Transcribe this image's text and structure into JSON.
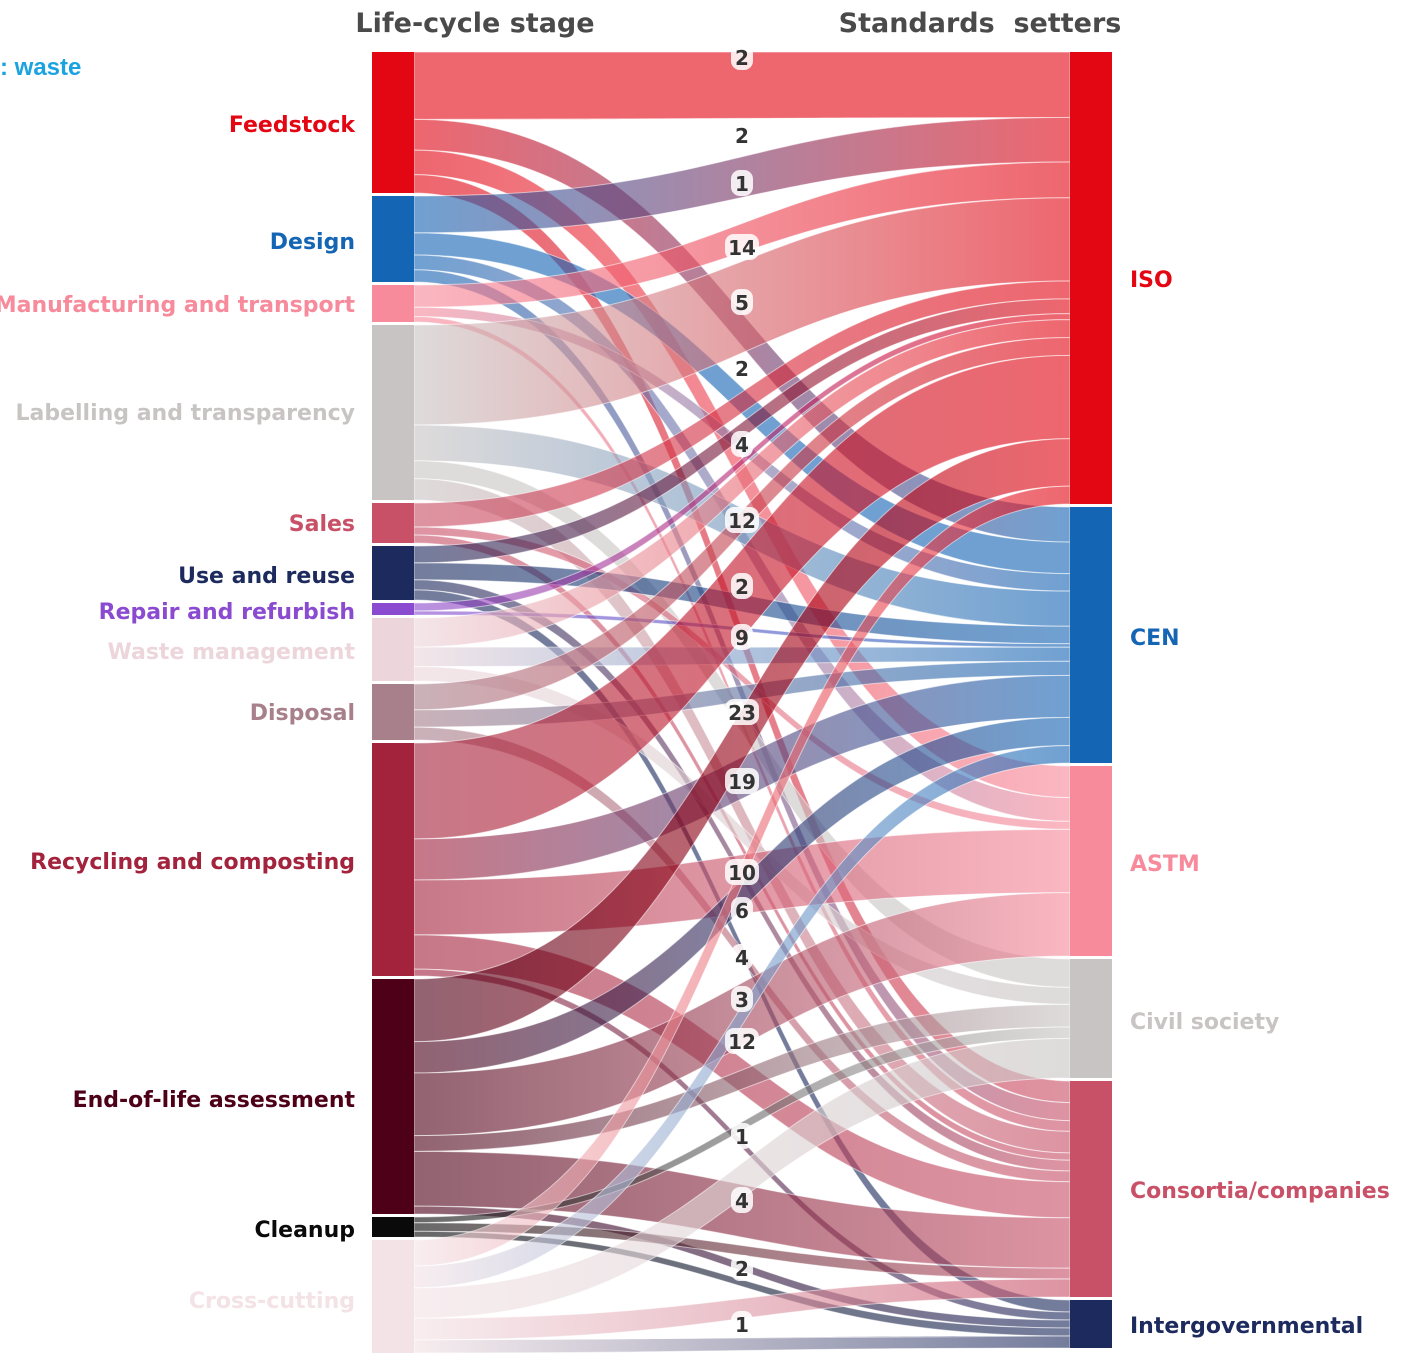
{
  "cut_text": ": waste",
  "titles": {
    "left": "Life-cycle stage",
    "right": "Standards  setters"
  },
  "colors": {
    "title": "#4a4a4a",
    "flow_label": "#333333"
  },
  "chart_data": {
    "type": "sankey",
    "left_nodes": [
      {
        "id": "feedstock",
        "label": "Feedstock",
        "color": "#e30613"
      },
      {
        "id": "design",
        "label": "Design",
        "color": "#1565b5"
      },
      {
        "id": "manufacturing",
        "label": "Manufacturing and transport",
        "color": "#f78a9b"
      },
      {
        "id": "labelling",
        "label": "Labelling and transparency",
        "color": "#c9c4c4"
      },
      {
        "id": "sales",
        "label": "Sales",
        "color": "#c85067"
      },
      {
        "id": "use",
        "label": "Use and reuse",
        "color": "#1c2a5e"
      },
      {
        "id": "repair",
        "label": "Repair and refurbish",
        "color": "#8b4bd1"
      },
      {
        "id": "waste",
        "label": "Waste management",
        "color": "#ecd6dc"
      },
      {
        "id": "disposal",
        "label": "Disposal",
        "color": "#a8808c"
      },
      {
        "id": "recycling",
        "label": "Recycling and composting",
        "color": "#a3233d"
      },
      {
        "id": "eol",
        "label": "End-of-life assessment",
        "color": "#4d0018"
      },
      {
        "id": "cleanup",
        "label": "Cleanup",
        "color": "#0a0a0a"
      },
      {
        "id": "cross",
        "label": "Cross-cutting",
        "color": "#f3e2e6"
      }
    ],
    "right_nodes": [
      {
        "id": "iso",
        "label": "ISO",
        "color": "#e30613"
      },
      {
        "id": "cen",
        "label": "CEN",
        "color": "#1565b5"
      },
      {
        "id": "astm",
        "label": "ASTM",
        "color": "#f78a9b"
      },
      {
        "id": "civil",
        "label": "Civil society",
        "color": "#c9c4c4"
      },
      {
        "id": "consortia",
        "label": "Consortia/companies",
        "color": "#c85067"
      },
      {
        "id": "intergov",
        "label": "Intergovernmental",
        "color": "#1c2a5e"
      }
    ],
    "value_labels": [
      "2",
      "2",
      "1",
      "14",
      "5",
      "2",
      "4",
      "12",
      "2",
      "9",
      "23",
      "19",
      "10",
      "6",
      "4",
      "3",
      "12",
      "1",
      "4",
      "2",
      "1"
    ]
  }
}
